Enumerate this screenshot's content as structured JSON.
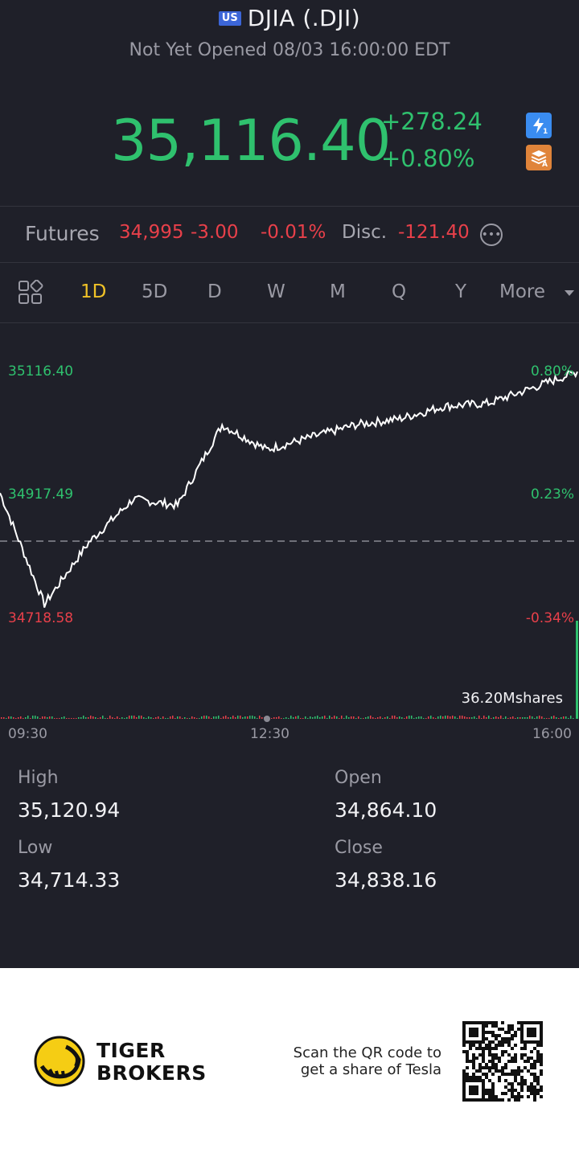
{
  "header": {
    "market_badge": "US",
    "title": "DJIA (.DJI)",
    "status": "Not Yet Opened 08/03 16:00:00 EDT",
    "price": "35,116.40",
    "change_abs": "+278.24",
    "change_pct": "+0.80%",
    "badge_lightning_icon": "lightning-icon",
    "badge_layers_icon": "layers-icon",
    "colors": {
      "up": "#2fc16e",
      "down": "#e8404a"
    }
  },
  "futures": {
    "label": "Futures",
    "price": "34,995",
    "change": "-3.00",
    "change_pct": "-0.01%",
    "disc_label": "Disc.",
    "disc_value": "-121.40",
    "more_icon": "more-circle-icon"
  },
  "tabs": {
    "items": [
      "1D",
      "5D",
      "D",
      "W",
      "M",
      "Q",
      "Y",
      "More"
    ],
    "active": "1D"
  },
  "chart": {
    "y_labels": {
      "top": "35116.40",
      "mid": "34917.49",
      "low": "34718.58"
    },
    "pct_labels": {
      "top": "0.80%",
      "mid": "0.23%",
      "low": "-0.34%"
    },
    "volume_label": "36.20Mshares",
    "time_labels": [
      "09:30",
      "12:30",
      "16:00"
    ]
  },
  "stats": {
    "high_label": "High",
    "high_value": "35,120.94",
    "open_label": "Open",
    "open_value": "34,864.10",
    "low_label": "Low",
    "low_value": "34,714.33",
    "close_label": "Close",
    "close_value": "34,838.16"
  },
  "footer": {
    "brand_line1": "TIGER",
    "brand_line2": "BROKERS",
    "scan_line1": "Scan the QR code to",
    "scan_line2": "get a share of Tesla"
  },
  "chart_data": {
    "type": "line",
    "x": [
      "09:30",
      "10:00",
      "10:30",
      "11:00",
      "11:30",
      "12:00",
      "12:30",
      "13:00",
      "13:30",
      "14:00",
      "14:30",
      "15:00",
      "15:30",
      "16:00"
    ],
    "y": [
      34920,
      34740,
      34840,
      34910,
      34900,
      35030,
      34990,
      35010,
      35030,
      35040,
      35060,
      35065,
      35090,
      35116
    ],
    "ylim": [
      34718.58,
      35116.4
    ],
    "reference_close": 34838.16
  }
}
